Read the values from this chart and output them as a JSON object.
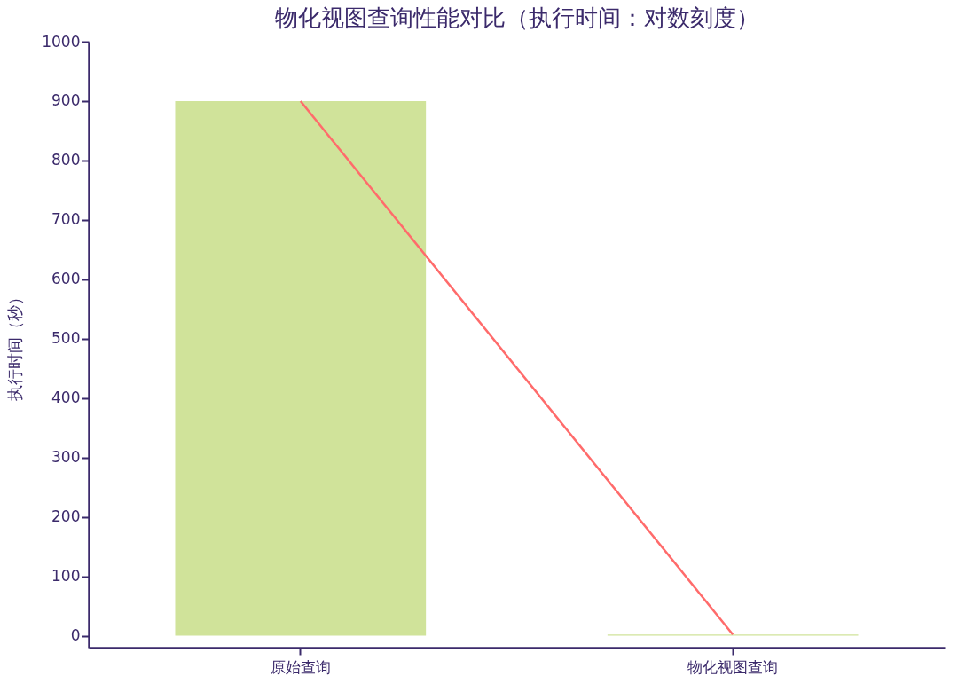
{
  "chart_data": {
    "type": "bar",
    "title": "物化视图查询性能对比（执行时间：对数刻度）",
    "ylabel": "执行时间（秒）",
    "categories": [
      "原始查询",
      "物化视图查询"
    ],
    "series": [
      {
        "color": "#d0e39a",
        "values": [
          900,
          2
        ]
      },
      {
        "type": "line",
        "color": "#ff6b6b",
        "values": [
          900,
          2
        ]
      }
    ],
    "ylim": [
      -20,
      1000
    ],
    "yticks": [
      0,
      100,
      200,
      300,
      400,
      500,
      600,
      700,
      800,
      900,
      {
        "value": 1000,
        "label": "1000"
      }
    ],
    "grid": false,
    "marker": "none",
    "line_style": "solid"
  }
}
